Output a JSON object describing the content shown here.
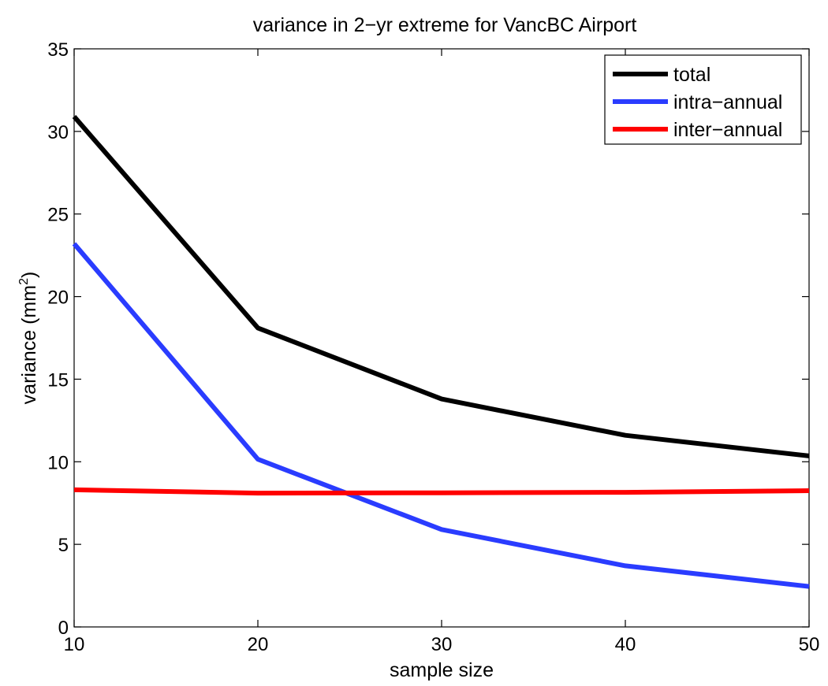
{
  "chart_data": {
    "type": "line",
    "title": "variance in 2−yr extreme for VancBC Airport",
    "xlabel": "sample size",
    "ylabel": "variance (mm",
    "ylabel_sup": "2",
    "ylabel_close": ")",
    "x": [
      10,
      20,
      30,
      40,
      50
    ],
    "xlim": [
      10,
      50
    ],
    "ylim": [
      0,
      35
    ],
    "xticks": [
      10,
      20,
      30,
      40,
      50
    ],
    "yticks": [
      0,
      5,
      10,
      15,
      20,
      25,
      30,
      35
    ],
    "grid": false,
    "legend_position": "top-right",
    "series": [
      {
        "name": "total",
        "color": "#000000",
        "values": [
          30.9,
          18.1,
          13.8,
          11.6,
          10.35
        ]
      },
      {
        "name": "intra−annual",
        "color": "#2a3cff",
        "values": [
          23.2,
          10.15,
          5.9,
          3.7,
          2.45
        ]
      },
      {
        "name": "inter−annual",
        "color": "#ff0000",
        "values": [
          8.3,
          8.1,
          8.12,
          8.15,
          8.25
        ]
      }
    ]
  }
}
